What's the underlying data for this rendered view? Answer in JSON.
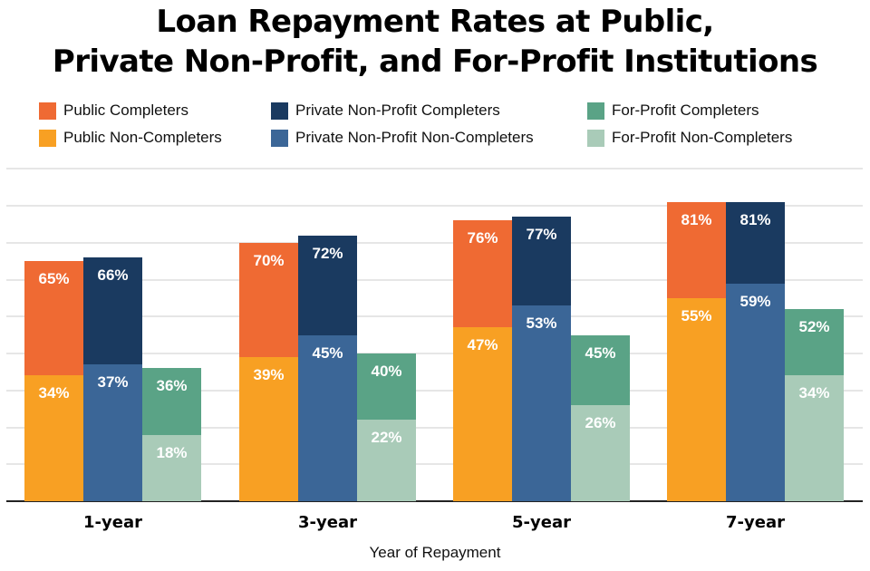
{
  "chart_data": {
    "type": "bar",
    "subtype": "grouped-overlapping",
    "title": "Loan Repayment Rates at Public, Private Non-Profit, and For-Profit Institutions",
    "title_lines": [
      "Loan Repayment Rates at Public,",
      "Private Non-Profit, and For-Profit Institutions"
    ],
    "xlabel": "Year of Repayment",
    "ylabel": "",
    "ylim": [
      0,
      90
    ],
    "ytick_step": 10,
    "grid": true,
    "legend_position": "top",
    "categories": [
      "1-year",
      "3-year",
      "5-year",
      "7-year"
    ],
    "series": [
      {
        "name": "Public Completers",
        "color": "#ef6a33",
        "values": [
          65,
          70,
          76,
          81
        ]
      },
      {
        "name": "Public Non-Completers",
        "color": "#f8a023",
        "values": [
          34,
          39,
          47,
          55
        ]
      },
      {
        "name": "Private Non-Profit Completers",
        "color": "#1a3a60",
        "values": [
          66,
          72,
          77,
          81
        ]
      },
      {
        "name": "Private Non-Profit Non-Completers",
        "color": "#3b6697",
        "values": [
          37,
          45,
          53,
          59
        ]
      },
      {
        "name": "For-Profit Completers",
        "color": "#5aa386",
        "values": [
          36,
          40,
          45,
          52
        ]
      },
      {
        "name": "For-Profit Non-Completers",
        "color": "#a9cbb8",
        "values": [
          18,
          22,
          26,
          34
        ]
      }
    ],
    "value_labels": {
      "1-year": {
        "public_completers": "65%",
        "public_non_completers": "34%",
        "pnp_completers": "66%",
        "pnp_non_completers": "37%",
        "fp_completers": "36%",
        "fp_non_completers": "18%"
      },
      "3-year": {
        "public_completers": "70%",
        "public_non_completers": "39%",
        "pnp_completers": "72%",
        "pnp_non_completers": "45%",
        "fp_completers": "40%",
        "fp_non_completers": "22%"
      },
      "5-year": {
        "public_completers": "76%",
        "public_non_completers": "47%",
        "pnp_completers": "77%",
        "pnp_non_completers": "53%",
        "fp_completers": "45%",
        "fp_non_completers": "26%"
      },
      "7-year": {
        "public_completers": "81%",
        "public_non_completers": "55%",
        "pnp_completers": "81%",
        "pnp_non_completers": "59%",
        "fp_completers": "52%",
        "fp_non_completers": "34%"
      }
    }
  },
  "legend": {
    "items": [
      {
        "label": "Public Completers",
        "color": "#ef6a33"
      },
      {
        "label": "Private Non-Profit Completers",
        "color": "#1a3a60"
      },
      {
        "label": "For-Profit Completers",
        "color": "#5aa386"
      },
      {
        "label": "Public Non-Completers",
        "color": "#f8a023"
      },
      {
        "label": "Private Non-Profit Non-Completers",
        "color": "#3b6697"
      },
      {
        "label": "For-Profit Non-Completers",
        "color": "#a9cbb8"
      }
    ]
  }
}
